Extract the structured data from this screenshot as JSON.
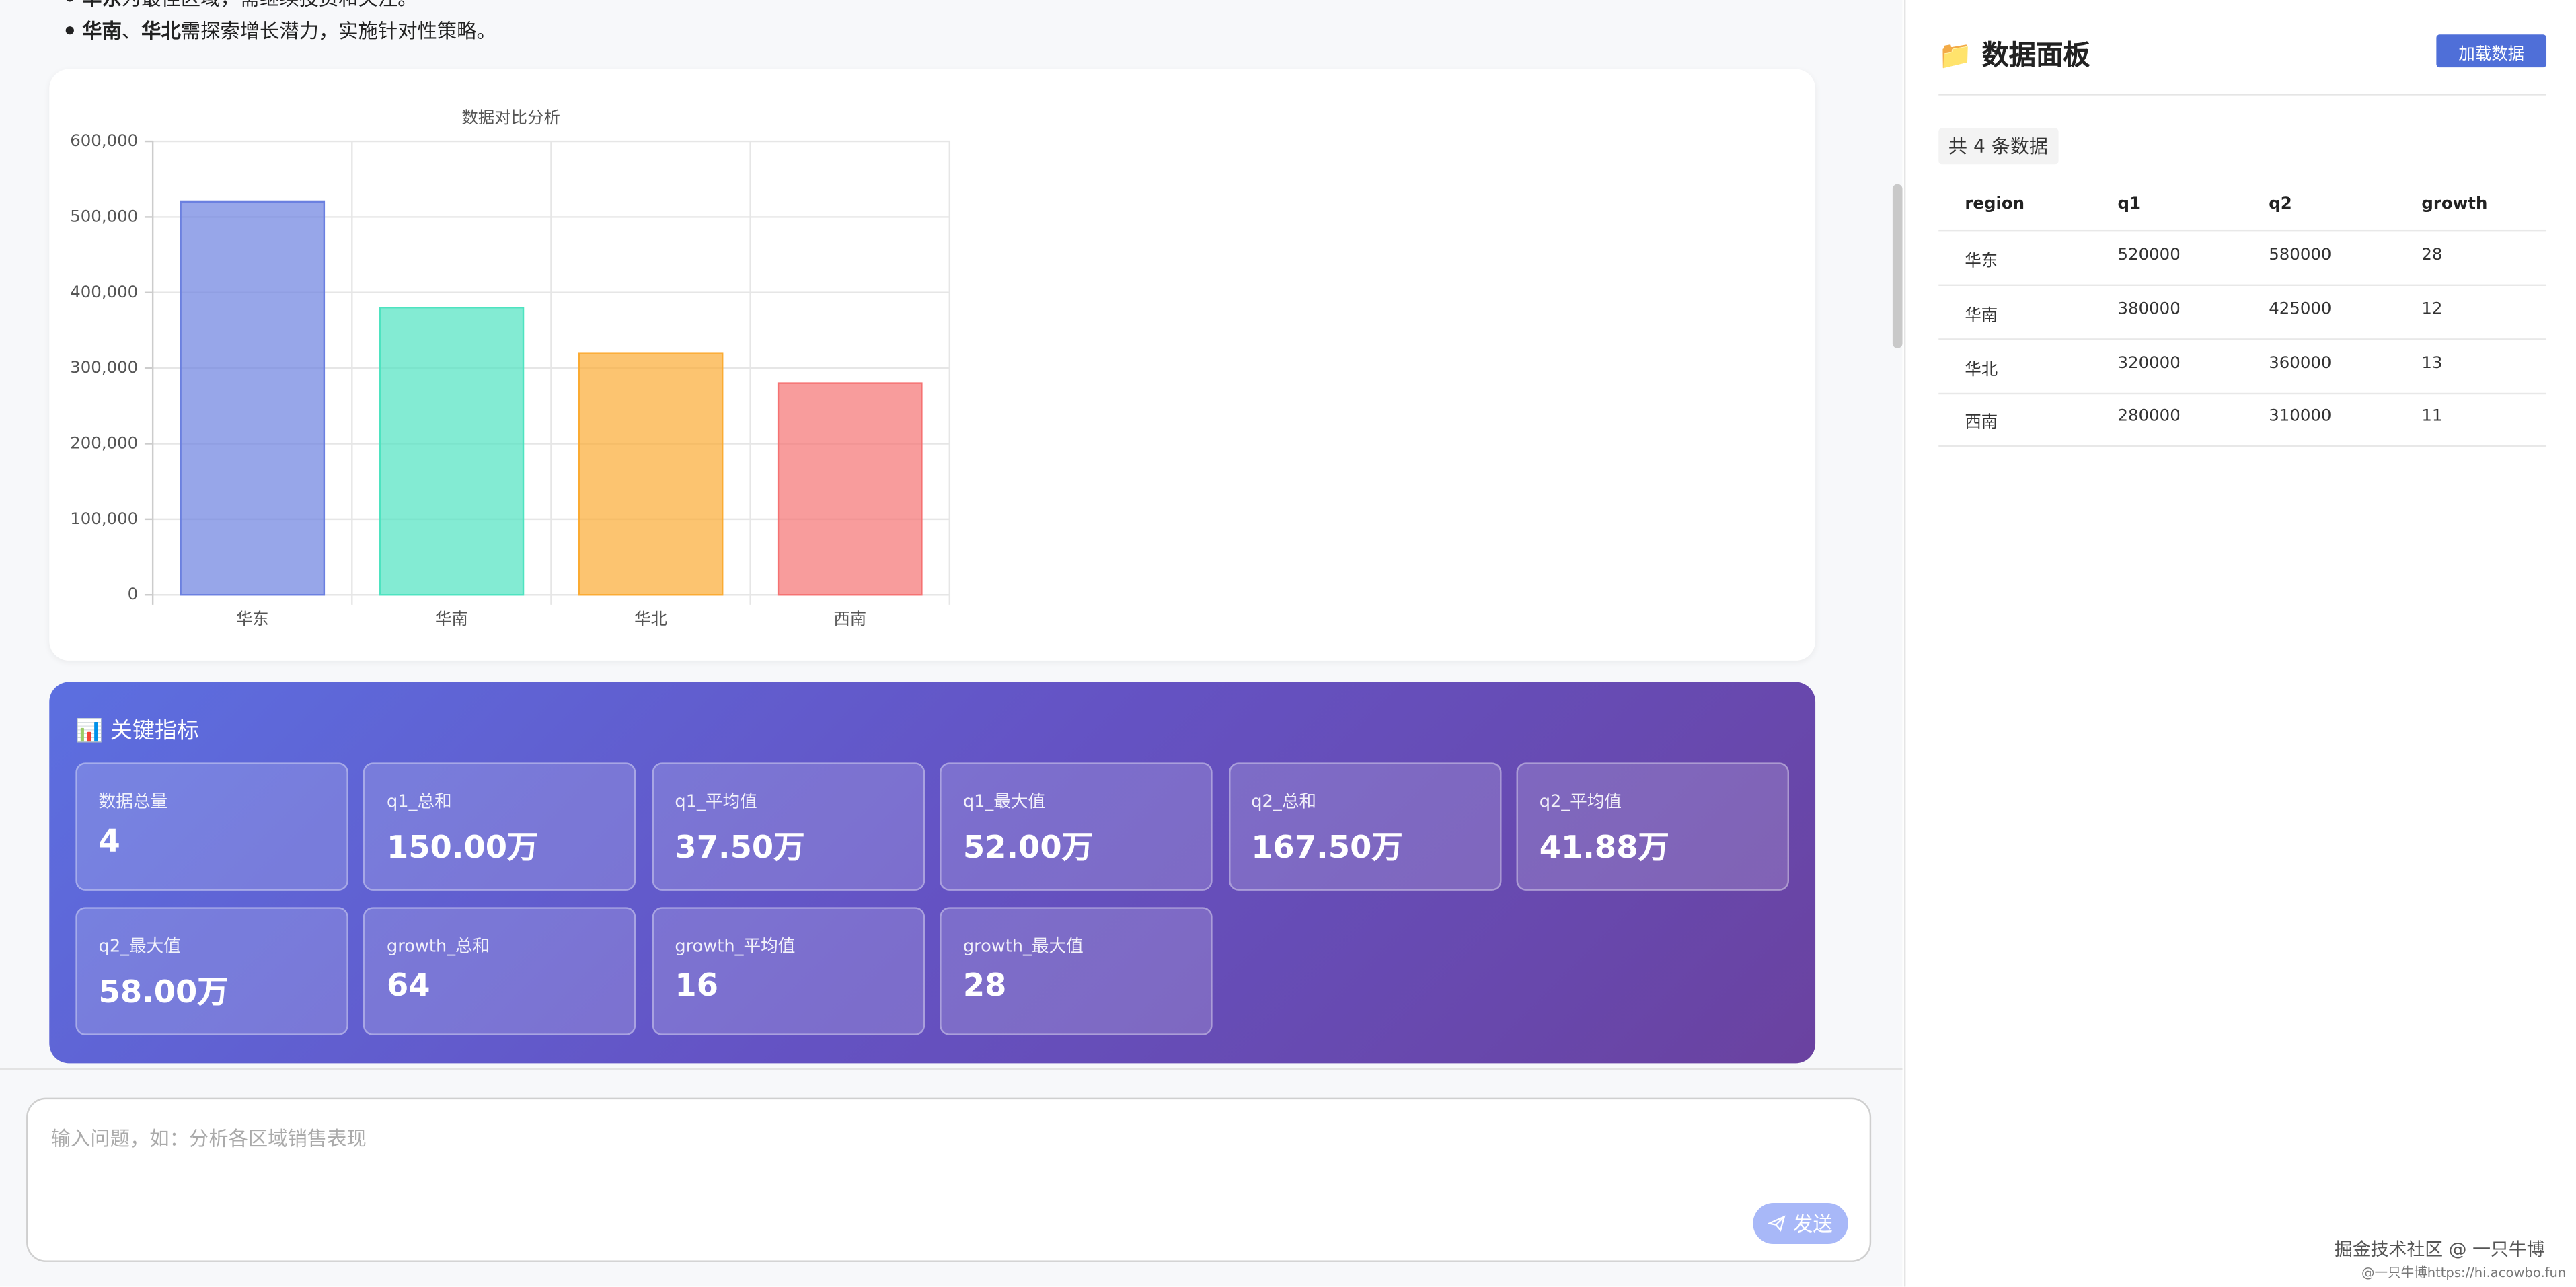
{
  "summary_bullets": [
    [
      {
        "text": "华东",
        "bold": true
      },
      {
        "text": "为最佳区域，需继续投资和关注。"
      }
    ],
    [
      {
        "text": "华南",
        "bold": true
      },
      {
        "text": "、"
      },
      {
        "text": "华北",
        "bold": true
      },
      {
        "text": "需探索增长潜力，实施针对性策略。"
      }
    ]
  ],
  "chart_data": {
    "type": "bar",
    "title": "数据对比分析",
    "categories": [
      "华东",
      "华南",
      "华北",
      "西南"
    ],
    "values": [
      520000,
      380000,
      320000,
      280000
    ],
    "colors": [
      "#6b80e0",
      "#4ee3c0",
      "#fbab33",
      "#f57272"
    ],
    "ylim": [
      0,
      600000
    ],
    "yticks": [
      0,
      {
        "value": 100000,
        "label": "100,000"
      },
      {
        "value": 200000,
        "label": "200,000"
      },
      {
        "value": 300000,
        "label": "300,000"
      },
      {
        "value": 400000,
        "label": "400,000"
      },
      {
        "value": 500000,
        "label": "500,000"
      },
      {
        "value": 600000,
        "label": "600,000"
      }
    ],
    "grid": true
  },
  "metrics": {
    "title": "📊 关键指标",
    "items": [
      {
        "label": "数据总量",
        "value": 4
      },
      {
        "label": "q1_总和",
        "value": "150.00万"
      },
      {
        "label": "q1_平均值",
        "value": "37.50万"
      },
      {
        "label": "q1_最大值",
        "value": "52.00万"
      },
      {
        "label": "q2_总和",
        "value": "167.50万"
      },
      {
        "label": "q2_平均值",
        "value": "41.88万"
      },
      {
        "label": "q2_最大值",
        "value": "58.00万"
      },
      {
        "label": "growth_总和",
        "value": 64
      },
      {
        "label": "growth_平均值",
        "value": 16
      },
      {
        "label": "growth_最大值",
        "value": 28
      }
    ]
  },
  "input": {
    "placeholder": "输入问题，如：分析各区域销售表现",
    "send": "发送"
  },
  "panel": {
    "title": "📁 数据面板",
    "load_button": "加载数据",
    "count": "共 4 条数据",
    "table": {
      "headers": [
        "region",
        "q1",
        "q2",
        "growth"
      ],
      "rows": [
        [
          "华东",
          520000,
          580000,
          28
        ],
        [
          "华南",
          380000,
          425000,
          12
        ],
        [
          "华北",
          320000,
          360000,
          13
        ],
        [
          "西南",
          280000,
          310000,
          11
        ]
      ]
    }
  },
  "watermark": {
    "line1": "掘金技术社区 @ 一只牛博",
    "line2": "@一只牛博https://hi.acowbo.fun"
  }
}
